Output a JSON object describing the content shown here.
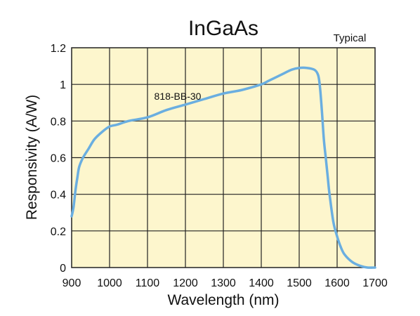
{
  "chart_data": {
    "type": "line",
    "title": "InGaAs",
    "annotation": "Typical",
    "xlabel": "Wavelength (nm)",
    "ylabel": "Responsivity (A/W)",
    "xlim": [
      900,
      1700
    ],
    "ylim": [
      0,
      1.2
    ],
    "xticks": [
      "900",
      "1000",
      "1100",
      "1200",
      "1300",
      "1400",
      "1500",
      "1600",
      "1700"
    ],
    "yticks": [
      "0",
      "0.2",
      "0.4",
      "0.6",
      "0.8",
      "1",
      "1.2"
    ],
    "grid": true,
    "colors": {
      "plot_background": "#fdf6cd",
      "grid": "#222222",
      "series": "#6aaee0"
    },
    "series": [
      {
        "name": "818-BB-30",
        "x": [
          900,
          905,
          910,
          915,
          920,
          930,
          945,
          960,
          980,
          1000,
          1020,
          1050,
          1100,
          1150,
          1200,
          1250,
          1300,
          1350,
          1400,
          1420,
          1450,
          1480,
          1500,
          1520,
          1540,
          1550,
          1555,
          1560,
          1565,
          1570,
          1575,
          1580,
          1590,
          1600,
          1610,
          1620,
          1640,
          1660,
          1680,
          1700
        ],
        "y": [
          0.28,
          0.33,
          0.42,
          0.49,
          0.55,
          0.6,
          0.65,
          0.7,
          0.74,
          0.77,
          0.78,
          0.8,
          0.82,
          0.86,
          0.89,
          0.92,
          0.95,
          0.97,
          1.0,
          1.02,
          1.05,
          1.08,
          1.09,
          1.09,
          1.08,
          1.05,
          0.98,
          0.85,
          0.7,
          0.6,
          0.5,
          0.4,
          0.25,
          0.17,
          0.11,
          0.07,
          0.03,
          0.01,
          0.0,
          0.0
        ]
      }
    ]
  }
}
